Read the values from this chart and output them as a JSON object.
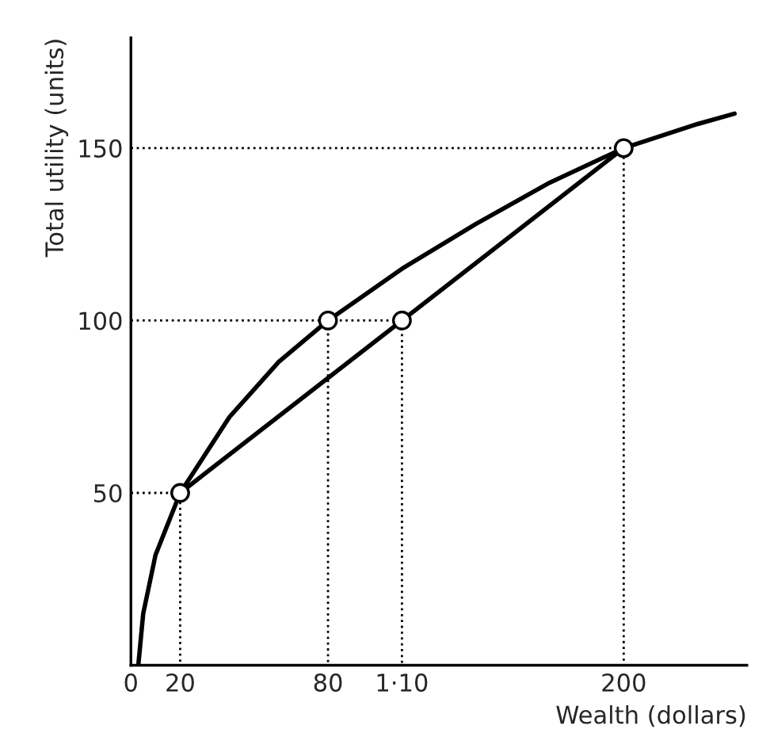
{
  "chart_data": {
    "type": "line",
    "xlabel": "Wealth (dollars)",
    "ylabel": "Total utility (units)",
    "xlim": [
      0,
      250
    ],
    "ylim": [
      0,
      182
    ],
    "xticks": [
      0,
      20,
      80,
      {
        "value": 110,
        "label": "1·10"
      },
      200
    ],
    "yticks": [
      50,
      100,
      150
    ],
    "grid": false,
    "legend": false,
    "series": [
      {
        "line_style": "dotted",
        "color": "#000000",
        "x": [
          0,
          20,
          20
        ],
        "values": [
          50,
          50,
          0
        ]
      },
      {
        "line_style": "dotted",
        "color": "#000000",
        "x": [
          0,
          80,
          80
        ],
        "values": [
          100,
          100,
          0
        ]
      },
      {
        "line_style": "dotted",
        "color": "#000000",
        "x": [
          80,
          110,
          110
        ],
        "values": [
          100,
          100,
          0
        ]
      },
      {
        "line_style": "dotted",
        "color": "#000000",
        "x": [
          0,
          200,
          200
        ],
        "values": [
          150,
          150,
          0
        ]
      },
      {
        "line_style": "solid",
        "color": "#000000",
        "x": [
          3,
          5,
          10,
          20,
          40,
          60,
          80,
          110,
          140,
          170,
          200,
          230,
          245
        ],
        "values": [
          0,
          15,
          32,
          50,
          72,
          88,
          100,
          115,
          128,
          140,
          150,
          157,
          160
        ]
      },
      {
        "line_style": "solid",
        "color": "#000000",
        "x": [
          20,
          200
        ],
        "values": [
          50,
          150
        ]
      },
      {
        "type": "scatter",
        "marker": "circle",
        "color": "#ffffff",
        "x": [
          20,
          80,
          110,
          200
        ],
        "values": [
          50,
          100,
          100,
          150
        ]
      }
    ]
  }
}
